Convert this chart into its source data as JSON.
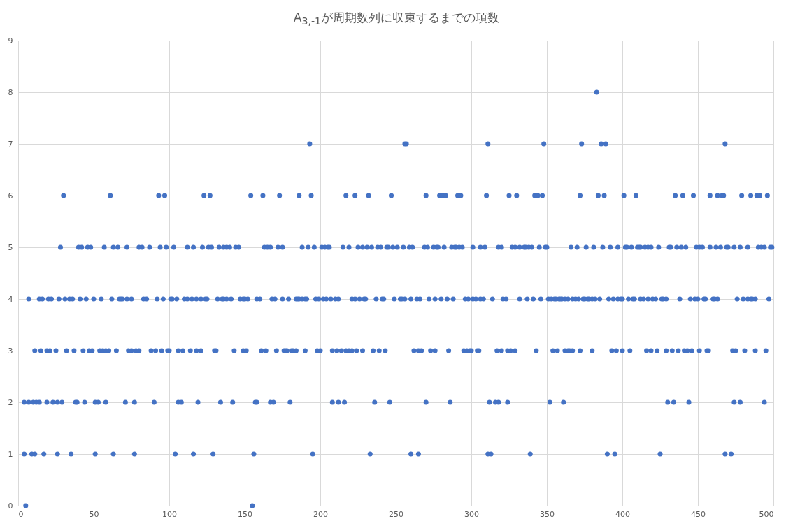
{
  "chart_data": {
    "type": "scatter",
    "title": "A$_{3,-1}$が周期数列に収束するまでの項数",
    "color": "#4472c4",
    "marker": "circle",
    "grid": true,
    "xlim": [
      0,
      500
    ],
    "xticks": [
      0,
      50,
      100,
      150,
      200,
      250,
      300,
      350,
      400,
      450,
      500
    ],
    "ylim": [
      0,
      9
    ],
    "yticks": [
      0,
      1,
      2,
      3,
      4,
      5,
      6,
      7,
      8,
      9
    ],
    "x": [
      5,
      155,
      4,
      9,
      11,
      17,
      26,
      35,
      51,
      63,
      77,
      104,
      116,
      129,
      156,
      195,
      233,
      260,
      265,
      311,
      313,
      339,
      390,
      395,
      425,
      468,
      472,
      4,
      7,
      10,
      12,
      14,
      19,
      23,
      26,
      29,
      38,
      39,
      44,
      51,
      53,
      58,
      71,
      77,
      90,
      106,
      108,
      119,
      134,
      142,
      157,
      158,
      167,
      169,
      180,
      208,
      212,
      216,
      236,
      246,
      270,
      286,
      312,
      316,
      318,
      324,
      352,
      361,
      430,
      434,
      444,
      474,
      478,
      494,
      11,
      15,
      19,
      21,
      25,
      32,
      37,
      43,
      47,
      49,
      54,
      56,
      58,
      60,
      65,
      73,
      75,
      78,
      80,
      88,
      91,
      95,
      99,
      100,
      106,
      109,
      114,
      118,
      121,
      130,
      131,
      143,
      149,
      151,
      161,
      164,
      171,
      176,
      177,
      178,
      181,
      182,
      184,
      190,
      198,
      200,
      208,
      211,
      214,
      217,
      219,
      221,
      224,
      228,
      235,
      239,
      243,
      262,
      265,
      267,
      273,
      276,
      285,
      295,
      297,
      299,
      300,
      304,
      305,
      317,
      320,
      324,
      326,
      329,
      343,
      354,
      357,
      362,
      364,
      365,
      367,
      372,
      380,
      393,
      396,
      400,
      405,
      416,
      419,
      423,
      429,
      433,
      437,
      441,
      443,
      446,
      451,
      456,
      457,
      473,
      475,
      481,
      488,
      495,
      7,
      14,
      16,
      20,
      22,
      27,
      31,
      34,
      36,
      41,
      45,
      50,
      55,
      62,
      67,
      68,
      69,
      72,
      75,
      83,
      85,
      92,
      96,
      101,
      102,
      105,
      110,
      112,
      115,
      118,
      121,
      124,
      125,
      132,
      135,
      136,
      138,
      141,
      147,
      149,
      150,
      152,
      158,
      160,
      168,
      170,
      175,
      179,
      184,
      185,
      186,
      188,
      190,
      191,
      197,
      199,
      202,
      204,
      207,
      210,
      212,
      221,
      223,
      226,
      229,
      230,
      237,
      241,
      242,
      249,
      253,
      254,
      256,
      260,
      264,
      266,
      272,
      276,
      280,
      284,
      288,
      296,
      298,
      301,
      303,
      306,
      308,
      314,
      321,
      323,
      332,
      337,
      341,
      346,
      351,
      353,
      355,
      356,
      358,
      359,
      360,
      362,
      364,
      367,
      369,
      371,
      374,
      375,
      377,
      378,
      380,
      382,
      385,
      391,
      394,
      397,
      399,
      400,
      404,
      407,
      408,
      412,
      414,
      417,
      420,
      422,
      426,
      427,
      429,
      438,
      445,
      448,
      450,
      454,
      455,
      460,
      461,
      463,
      476,
      480,
      483,
      485,
      486,
      488,
      497,
      28,
      40,
      42,
      46,
      48,
      57,
      63,
      66,
      72,
      80,
      82,
      87,
      94,
      98,
      103,
      112,
      116,
      122,
      126,
      128,
      133,
      136,
      138,
      140,
      144,
      146,
      163,
      165,
      167,
      172,
      175,
      188,
      192,
      196,
      201,
      203,
      205,
      206,
      215,
      219,
      225,
      228,
      231,
      234,
      238,
      240,
      244,
      245,
      248,
      251,
      255,
      259,
      261,
      269,
      271,
      275,
      277,
      278,
      282,
      287,
      289,
      290,
      292,
      294,
      301,
      306,
      309,
      318,
      320,
      327,
      329,
      332,
      335,
      336,
      338,
      340,
      345,
      349,
      350,
      366,
      370,
      376,
      381,
      387,
      392,
      397,
      402,
      403,
      406,
      410,
      411,
      412,
      415,
      417,
      419,
      424,
      431,
      432,
      436,
      439,
      442,
      449,
      451,
      453,
      458,
      462,
      465,
      469,
      470,
      474,
      478,
      483,
      490,
      492,
      494,
      498,
      499,
      30,
      61,
      93,
      97,
      123,
      127,
      154,
      162,
      173,
      186,
      194,
      217,
      223,
      232,
      247,
      270,
      279,
      281,
      283,
      291,
      293,
      310,
      325,
      330,
      342,
      344,
      347,
      372,
      384,
      388,
      401,
      409,
      435,
      440,
      447,
      458,
      463,
      466,
      467,
      479,
      485,
      489,
      491,
      496,
      193,
      256,
      257,
      311,
      348,
      373,
      386,
      389,
      468,
      383
    ],
    "values": [
      0,
      0,
      1,
      1,
      1,
      1,
      1,
      1,
      1,
      1,
      1,
      1,
      1,
      1,
      1,
      1,
      1,
      1,
      1,
      1,
      1,
      1,
      1,
      1,
      1,
      1,
      1,
      2,
      2,
      2,
      2,
      2,
      2,
      2,
      2,
      2,
      2,
      2,
      2,
      2,
      2,
      2,
      2,
      2,
      2,
      2,
      2,
      2,
      2,
      2,
      2,
      2,
      2,
      2,
      2,
      2,
      2,
      2,
      2,
      2,
      2,
      2,
      2,
      2,
      2,
      2,
      2,
      2,
      2,
      2,
      2,
      2,
      2,
      2,
      3,
      3,
      3,
      3,
      3,
      3,
      3,
      3,
      3,
      3,
      3,
      3,
      3,
      3,
      3,
      3,
      3,
      3,
      3,
      3,
      3,
      3,
      3,
      3,
      3,
      3,
      3,
      3,
      3,
      3,
      3,
      3,
      3,
      3,
      3,
      3,
      3,
      3,
      3,
      3,
      3,
      3,
      3,
      3,
      3,
      3,
      3,
      3,
      3,
      3,
      3,
      3,
      3,
      3,
      3,
      3,
      3,
      3,
      3,
      3,
      3,
      3,
      3,
      3,
      3,
      3,
      3,
      3,
      3,
      3,
      3,
      3,
      3,
      3,
      3,
      3,
      3,
      3,
      3,
      3,
      3,
      3,
      3,
      3,
      3,
      3,
      3,
      3,
      3,
      3,
      3,
      3,
      3,
      3,
      3,
      3,
      3,
      3,
      3,
      3,
      3,
      3,
      3,
      3,
      4,
      4,
      4,
      4,
      4,
      4,
      4,
      4,
      4,
      4,
      4,
      4,
      4,
      4,
      4,
      4,
      4,
      4,
      4,
      4,
      4,
      4,
      4,
      4,
      4,
      4,
      4,
      4,
      4,
      4,
      4,
      4,
      4,
      4,
      4,
      4,
      4,
      4,
      4,
      4,
      4,
      4,
      4,
      4,
      4,
      4,
      4,
      4,
      4,
      4,
      4,
      4,
      4,
      4,
      4,
      4,
      4,
      4,
      4,
      4,
      4,
      4,
      4,
      4,
      4,
      4,
      4,
      4,
      4,
      4,
      4,
      4,
      4,
      4,
      4,
      4,
      4,
      4,
      4,
      4,
      4,
      4,
      4,
      4,
      4,
      4,
      4,
      4,
      4,
      4,
      4,
      4,
      4,
      4,
      4,
      4,
      4,
      4,
      4,
      4,
      4,
      4,
      4,
      4,
      4,
      4,
      4,
      4,
      4,
      4,
      4,
      4,
      4,
      4,
      4,
      4,
      4,
      4,
      4,
      4,
      4,
      4,
      4,
      4,
      4,
      4,
      4,
      4,
      4,
      4,
      4,
      4,
      4,
      4,
      4,
      4,
      4,
      4,
      4,
      4,
      4,
      4,
      4,
      4,
      4,
      5,
      5,
      5,
      5,
      5,
      5,
      5,
      5,
      5,
      5,
      5,
      5,
      5,
      5,
      5,
      5,
      5,
      5,
      5,
      5,
      5,
      5,
      5,
      5,
      5,
      5,
      5,
      5,
      5,
      5,
      5,
      5,
      5,
      5,
      5,
      5,
      5,
      5,
      5,
      5,
      5,
      5,
      5,
      5,
      5,
      5,
      5,
      5,
      5,
      5,
      5,
      5,
      5,
      5,
      5,
      5,
      5,
      5,
      5,
      5,
      5,
      5,
      5,
      5,
      5,
      5,
      5,
      5,
      5,
      5,
      5,
      5,
      5,
      5,
      5,
      5,
      5,
      5,
      5,
      5,
      5,
      5,
      5,
      5,
      5,
      5,
      5,
      5,
      5,
      5,
      5,
      5,
      5,
      5,
      5,
      5,
      5,
      5,
      5,
      5,
      5,
      5,
      5,
      5,
      5,
      5,
      5,
      5,
      5,
      5,
      5,
      5,
      5,
      5,
      5,
      5,
      5,
      6,
      6,
      6,
      6,
      6,
      6,
      6,
      6,
      6,
      6,
      6,
      6,
      6,
      6,
      6,
      6,
      6,
      6,
      6,
      6,
      6,
      6,
      6,
      6,
      6,
      6,
      6,
      6,
      6,
      6,
      6,
      6,
      6,
      6,
      6,
      6,
      6,
      6,
      6,
      6,
      6,
      6,
      6,
      6,
      7,
      7,
      7,
      7,
      7,
      7,
      7,
      7,
      7,
      8
    ]
  }
}
